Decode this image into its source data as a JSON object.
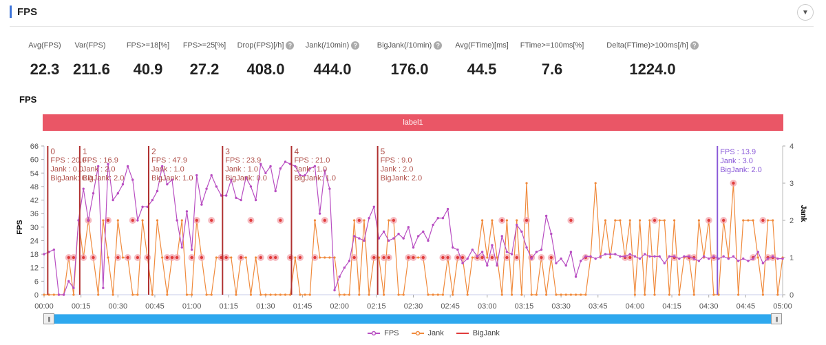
{
  "header": {
    "title": "FPS",
    "accent": "#3d74d9",
    "collapse_icon": "chevron-down-circle-icon",
    "collapse_glyph": "▼"
  },
  "metrics": [
    {
      "label": "Avg(FPS)",
      "value": "22.3",
      "help": false
    },
    {
      "label": "Var(FPS)",
      "value": "211.6",
      "help": false
    },
    {
      "label": "FPS>=18[%]",
      "value": "40.9",
      "help": false
    },
    {
      "label": "FPS>=25[%]",
      "value": "27.2",
      "help": false
    },
    {
      "label": "Drop(FPS)[/h]",
      "value": "408.0",
      "help": true
    },
    {
      "label": "Jank(/10min)",
      "value": "444.0",
      "help": true
    },
    {
      "label": "BigJank(/10min)",
      "value": "176.0",
      "help": true
    },
    {
      "label": "Avg(FTime)[ms]",
      "value": "44.5",
      "help": false
    },
    {
      "label": "FTime>=100ms[%]",
      "value": "7.6",
      "help": false
    },
    {
      "label": "Delta(FTime)>100ms[/h]",
      "value": "1224.0",
      "help": true
    }
  ],
  "help_glyph": "?",
  "section_title": "FPS",
  "label_bar": {
    "text": "label1",
    "color": "#ea5666"
  },
  "slider": {
    "start": 0.0,
    "end": 1.0,
    "handle_glyph": "|||"
  },
  "chart_data": {
    "type": "line",
    "title": "FPS",
    "xlabel": "",
    "ylabel": "FPS",
    "y2label": "Jank",
    "xlim_seconds": [
      0,
      300
    ],
    "ylim": [
      0,
      66
    ],
    "y2lim": [
      0,
      4
    ],
    "yticks": [
      0,
      6,
      12,
      18,
      24,
      30,
      36,
      42,
      48,
      54,
      60,
      66
    ],
    "y2ticks": [
      0,
      1,
      2,
      3,
      4
    ],
    "xticks": [
      "00:00",
      "00:15",
      "00:30",
      "00:45",
      "01:00",
      "01:15",
      "01:30",
      "01:45",
      "02:00",
      "02:15",
      "02:30",
      "02:45",
      "03:00",
      "03:15",
      "03:30",
      "03:45",
      "04:00",
      "04:15",
      "04:30",
      "04:45",
      "05:00"
    ],
    "legend": [
      {
        "name": "FPS",
        "color": "#b84ec2"
      },
      {
        "name": "Jank",
        "color": "#f08a3c"
      },
      {
        "name": "BigJank",
        "color": "#e03c3c"
      }
    ],
    "legend_position": "bottom",
    "series": [
      {
        "name": "FPS",
        "axis": "left",
        "color": "#b84ec2",
        "x": [
          0,
          2,
          4,
          6,
          8,
          10,
          12,
          14,
          16,
          18,
          20,
          22,
          24,
          26,
          28,
          30,
          32,
          34,
          36,
          38,
          40,
          42,
          44,
          46,
          48,
          50,
          52,
          54,
          56,
          58,
          60,
          62,
          64,
          66,
          68,
          70,
          72,
          74,
          76,
          78,
          80,
          82,
          84,
          86,
          88,
          90,
          92,
          94,
          96,
          98,
          100,
          102,
          104,
          106,
          108,
          110,
          112,
          114,
          116,
          118,
          120,
          122,
          124,
          126,
          128,
          130,
          132,
          134,
          136,
          138,
          140,
          142,
          144,
          146,
          148,
          150,
          152,
          154,
          156,
          158,
          160,
          162,
          164,
          166,
          168,
          170,
          172,
          174,
          176,
          178,
          180,
          182,
          184,
          186,
          188,
          190,
          192,
          194,
          196,
          198,
          200,
          202,
          204,
          206,
          208,
          210,
          212,
          214,
          216,
          218,
          220,
          222,
          224,
          226,
          228,
          230,
          232,
          234,
          236,
          238,
          240,
          242,
          244,
          246,
          248,
          250,
          252,
          254,
          256,
          258,
          260,
          262,
          264,
          266,
          268,
          270,
          272,
          274,
          276,
          278,
          280,
          282,
          284,
          286,
          288,
          290,
          292,
          294,
          296,
          298,
          300
        ],
        "values": [
          18,
          19,
          20,
          0,
          0,
          6,
          3,
          33,
          47,
          33,
          45,
          57,
          3,
          58,
          42,
          45,
          49,
          57,
          51,
          33,
          39,
          39,
          42,
          46,
          57,
          49,
          51,
          33,
          21,
          37,
          20,
          53,
          40,
          47,
          53,
          48,
          44,
          44,
          51,
          43,
          42,
          52,
          48,
          42,
          58,
          54,
          57,
          46,
          56,
          59,
          58,
          57,
          53,
          53,
          56,
          57,
          36,
          55,
          47,
          2,
          8,
          12,
          15,
          26,
          25,
          24,
          34,
          39,
          25,
          28,
          24,
          25,
          27,
          25,
          30,
          21,
          26,
          28,
          24,
          31,
          34,
          34,
          38,
          21,
          20,
          14,
          16,
          20,
          17,
          19,
          13,
          22,
          13,
          26,
          19,
          18,
          31,
          28,
          21,
          16,
          19,
          20,
          35,
          27,
          14,
          16,
          13,
          19,
          8,
          15,
          17,
          17,
          16,
          17,
          18,
          18,
          18,
          17,
          17,
          18,
          17,
          16,
          18,
          17,
          17,
          17,
          14,
          17,
          17,
          16,
          17,
          17,
          16,
          15,
          17,
          16,
          17,
          16,
          17,
          16,
          17,
          15,
          16,
          15,
          16,
          19,
          14,
          16,
          17,
          16,
          16
        ]
      },
      {
        "name": "Jank",
        "axis": "right",
        "color": "#f08a3c",
        "x": [
          0,
          2,
          4,
          6,
          8,
          10,
          12,
          14,
          16,
          18,
          20,
          22,
          24,
          26,
          28,
          30,
          32,
          34,
          36,
          38,
          40,
          42,
          44,
          46,
          48,
          50,
          52,
          54,
          56,
          58,
          60,
          62,
          64,
          66,
          68,
          70,
          72,
          74,
          76,
          78,
          80,
          82,
          84,
          86,
          88,
          90,
          92,
          94,
          96,
          98,
          100,
          102,
          104,
          106,
          108,
          110,
          112,
          114,
          116,
          118,
          120,
          122,
          124,
          126,
          128,
          130,
          132,
          134,
          136,
          138,
          140,
          142,
          144,
          146,
          148,
          150,
          152,
          154,
          156,
          158,
          160,
          162,
          164,
          166,
          168,
          170,
          172,
          174,
          176,
          178,
          180,
          182,
          184,
          186,
          188,
          190,
          192,
          194,
          196,
          198,
          200,
          202,
          204,
          206,
          208,
          210,
          212,
          214,
          216,
          218,
          220,
          222,
          224,
          226,
          228,
          230,
          232,
          234,
          236,
          238,
          240,
          242,
          244,
          246,
          248,
          250,
          252,
          254,
          256,
          258,
          260,
          262,
          264,
          266,
          268,
          270,
          272,
          274,
          276,
          278,
          280,
          282,
          284,
          286,
          288,
          290,
          292,
          294,
          296,
          298,
          300
        ],
        "values": [
          0,
          0,
          0,
          0,
          0,
          1,
          0,
          2,
          1,
          2,
          1,
          0,
          2,
          1,
          0,
          2,
          1,
          1,
          0,
          0,
          2,
          1,
          0,
          2,
          1,
          0,
          1,
          1,
          2,
          0,
          0,
          2,
          1,
          0,
          0,
          1,
          1,
          1,
          1,
          0,
          1,
          1,
          0,
          1,
          0,
          0,
          0,
          0,
          0,
          0,
          0,
          1,
          0,
          0,
          0,
          2,
          1,
          1,
          1,
          1,
          0,
          0,
          0,
          2,
          0,
          2,
          0,
          1,
          1,
          0,
          2,
          2,
          0,
          0,
          1,
          1,
          1,
          1,
          0,
          0,
          0,
          0,
          1,
          0,
          1,
          1,
          0,
          1,
          1,
          2,
          1,
          2,
          1,
          0,
          2,
          0,
          2,
          0,
          3,
          0,
          0,
          1,
          0,
          1,
          0,
          0,
          0,
          0,
          0,
          0,
          0,
          1,
          3,
          1,
          2,
          1,
          2,
          2,
          1,
          2,
          0,
          2,
          0,
          2,
          0,
          2,
          2,
          0,
          2,
          0,
          1,
          1,
          0,
          2,
          1,
          2,
          0,
          0,
          2,
          1,
          3,
          0,
          2,
          2,
          2,
          1,
          0,
          2,
          2,
          0,
          1
        ]
      },
      {
        "name": "BigJank",
        "axis": "right",
        "color": "#e03c3c",
        "x": [
          10,
          12,
          16,
          18,
          20,
          26,
          30,
          34,
          36,
          38,
          42,
          50,
          52,
          54,
          60,
          62,
          64,
          68,
          72,
          74,
          80,
          84,
          88,
          92,
          94,
          96,
          100,
          104,
          110,
          114,
          126,
          128,
          134,
          138,
          140,
          142,
          148,
          150,
          154,
          162,
          164,
          168,
          170,
          176,
          178,
          182,
          186,
          188,
          192,
          196,
          198,
          202,
          206,
          214,
          220,
          236,
          238,
          248,
          256,
          262,
          264,
          270,
          272,
          276,
          280,
          288,
          292,
          294,
          296
        ],
        "values": [
          1,
          1,
          1,
          2,
          1,
          2,
          1,
          1,
          2,
          1,
          1,
          1,
          1,
          1,
          1,
          2,
          1,
          2,
          1,
          1,
          1,
          2,
          1,
          1,
          1,
          2,
          1,
          1,
          1,
          2,
          1,
          2,
          1,
          1,
          1,
          2,
          1,
          1,
          1,
          1,
          1,
          1,
          1,
          1,
          1,
          1,
          2,
          1,
          1,
          2,
          1,
          1,
          1,
          2,
          1,
          1,
          1,
          2,
          1,
          1,
          1,
          2,
          1,
          2,
          3,
          1,
          2,
          1,
          1
        ]
      }
    ],
    "markers": [
      {
        "label": "0",
        "x": 1.5,
        "color": "#b03030",
        "fps": "FPS      : 20.0",
        "jank": "Jank     : 0.0",
        "bigjank": "BigJank: 0.0"
      },
      {
        "label": "1",
        "x": 14.5,
        "color": "#b03030",
        "fps": "FPS      : 16.9",
        "jank": "Jank     : 2.0",
        "bigjank": "BigJank: 2.0"
      },
      {
        "label": "2",
        "x": 42.5,
        "color": "#b03030",
        "fps": "FPS      : 47.9",
        "jank": "Jank     : 1.0",
        "bigjank": "BigJank: 1.0"
      },
      {
        "label": "3",
        "x": 72.5,
        "color": "#b03030",
        "fps": "FPS      : 23.9",
        "jank": "Jank     : 1.0",
        "bigjank": "BigJank: 0.0"
      },
      {
        "label": "4",
        "x": 100.5,
        "color": "#b03030",
        "fps": "FPS      : 21.0",
        "jank": "Jank     : 1.0",
        "bigjank": "BigJank: 1.0"
      },
      {
        "label": "5",
        "x": 135.5,
        "color": "#b03030",
        "fps": "FPS      : 9.0",
        "jank": "Jank     : 2.0",
        "bigjank": "BigJank: 2.0"
      },
      {
        "label": "",
        "x": 273.5,
        "color": "#8a5ad8",
        "fps": "FPS      : 13.9",
        "jank": "Jank     : 3.0",
        "bigjank": "BigJank: 2.0"
      }
    ]
  }
}
